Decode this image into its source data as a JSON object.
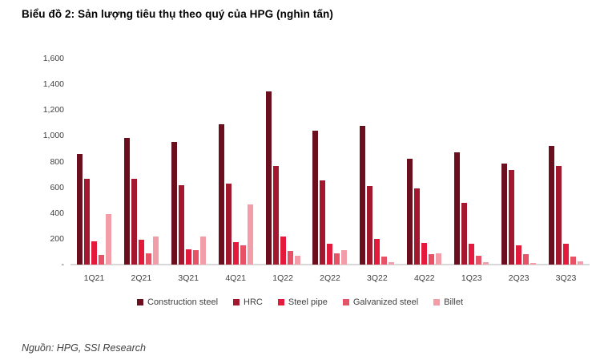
{
  "title": "Biểu đồ 2: Sản lượng tiêu thụ theo quý của HPG (nghìn tấn)",
  "source": "Nguồn: HPG, SSI Research",
  "chart_data": {
    "type": "bar",
    "title": "Biểu đồ 2: Sản lượng tiêu thụ theo quý của HPG (nghìn tấn)",
    "xlabel": "",
    "ylabel": "",
    "ylim": [
      0,
      1600
    ],
    "grid": false,
    "legend_position": "bottom",
    "categories": [
      "1Q21",
      "2Q21",
      "3Q21",
      "4Q21",
      "1Q22",
      "2Q22",
      "3Q22",
      "4Q22",
      "1Q23",
      "2Q23",
      "3Q23"
    ],
    "yticks": [
      {
        "label": "1,600",
        "value": 1600
      },
      {
        "label": "1,400",
        "value": 1400
      },
      {
        "label": "1,200",
        "value": 1200
      },
      {
        "label": "1,000",
        "value": 1000
      },
      {
        "label": "800",
        "value": 800
      },
      {
        "label": "600",
        "value": 600
      },
      {
        "label": "400",
        "value": 400
      },
      {
        "label": "200",
        "value": 200
      },
      {
        "label": "-",
        "value": 0
      }
    ],
    "series": [
      {
        "name": "Construction steel",
        "color": "#6B0F1F",
        "values": [
          860,
          985,
          955,
          1090,
          1345,
          1040,
          1075,
          820,
          870,
          785,
          920
        ]
      },
      {
        "name": "HRC",
        "color": "#A4182F",
        "values": [
          665,
          665,
          615,
          630,
          765,
          655,
          610,
          590,
          480,
          735,
          765
        ]
      },
      {
        "name": "Steel pipe",
        "color": "#E31A3C",
        "values": [
          180,
          190,
          120,
          175,
          215,
          160,
          200,
          170,
          160,
          150,
          160
        ]
      },
      {
        "name": "Galvanized steel",
        "color": "#E85266",
        "values": [
          75,
          85,
          110,
          150,
          105,
          85,
          60,
          80,
          70,
          80,
          60
        ]
      },
      {
        "name": "Billet",
        "color": "#F29DA8",
        "values": [
          390,
          215,
          220,
          470,
          70,
          115,
          20,
          85,
          20,
          15,
          25
        ]
      }
    ]
  }
}
